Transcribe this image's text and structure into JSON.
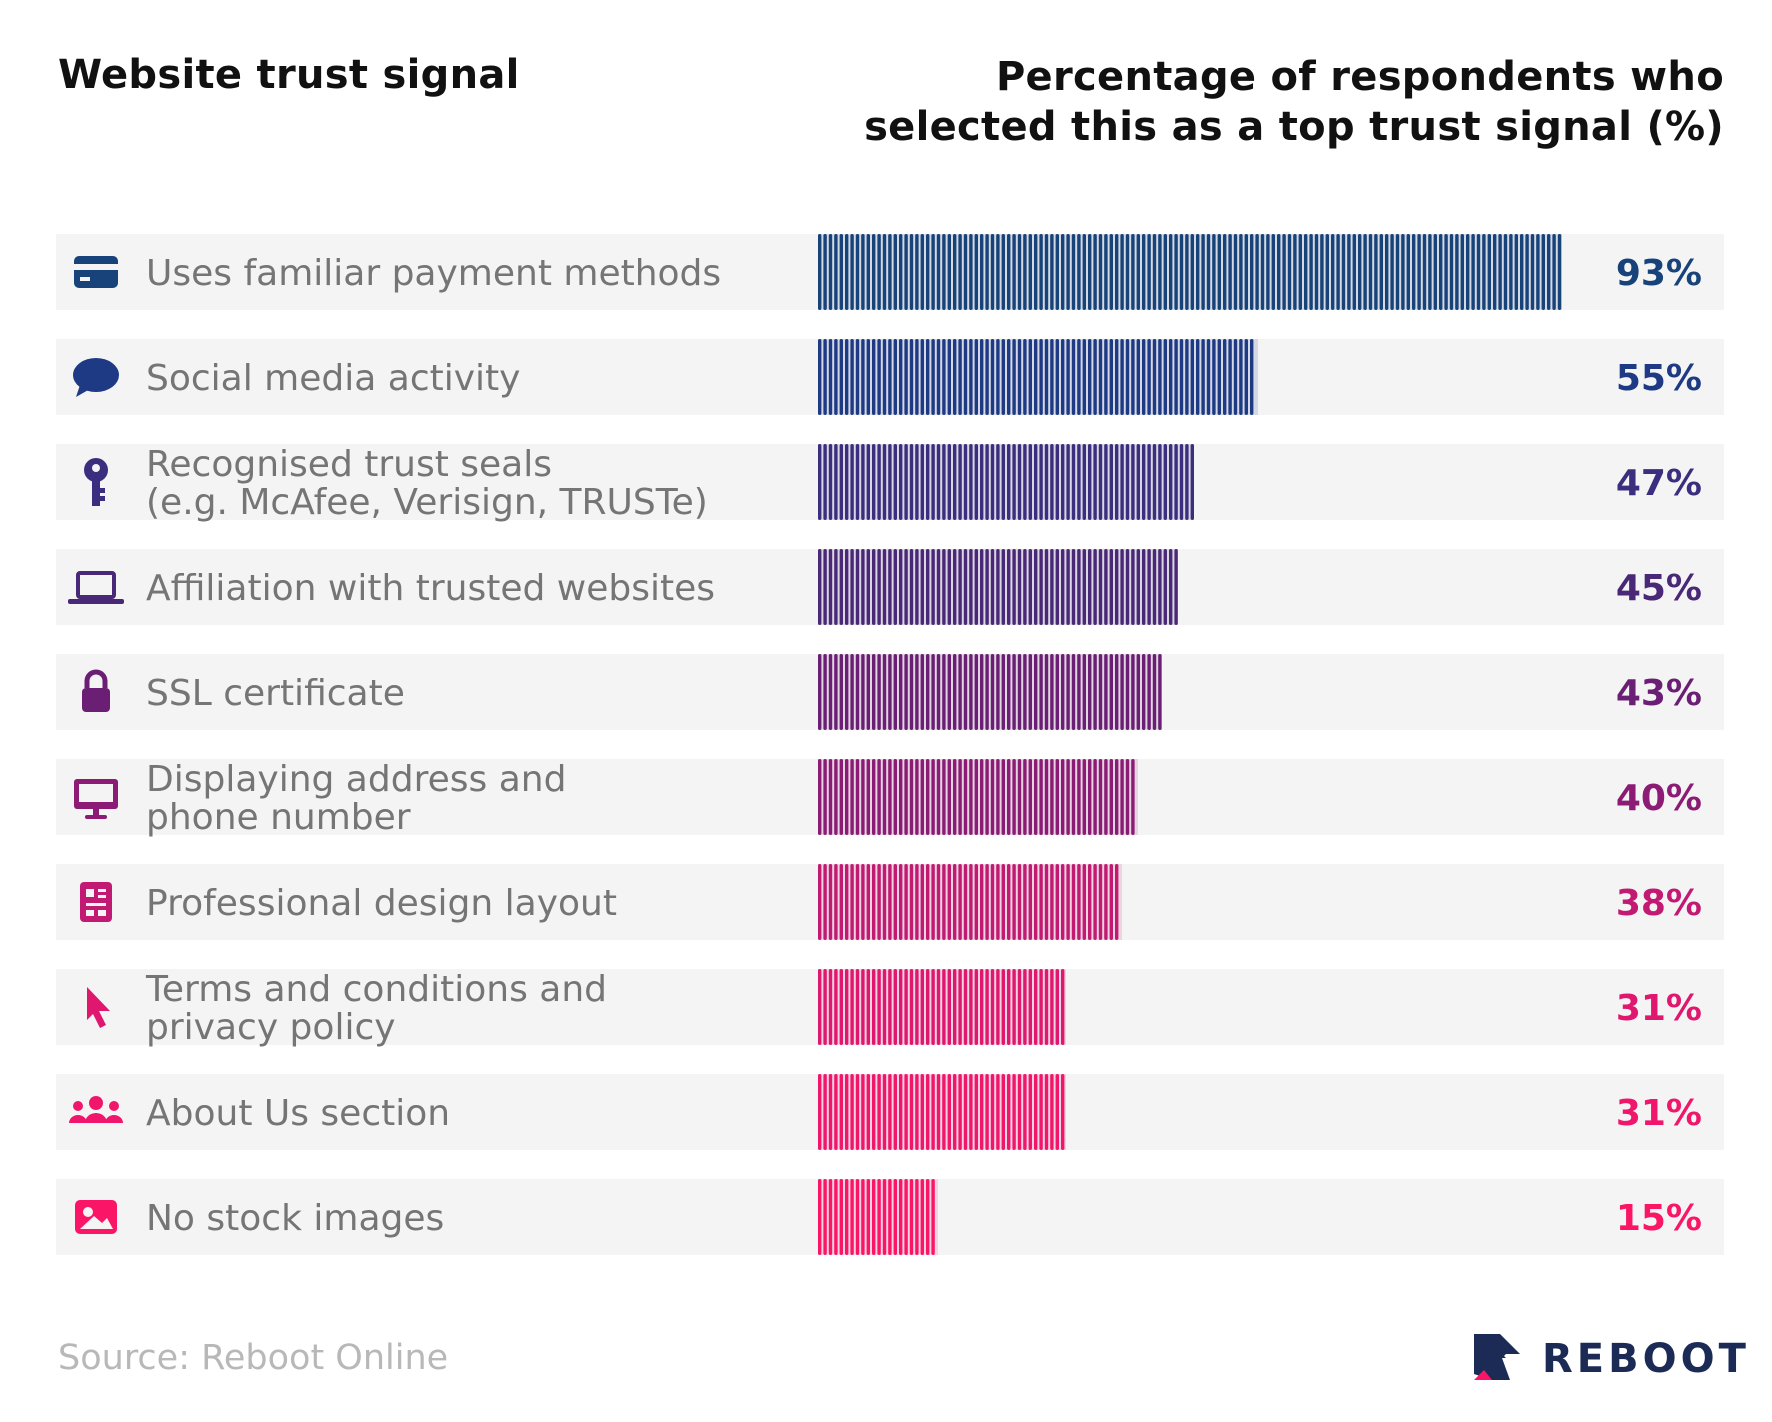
{
  "header": {
    "left_title": "Website trust signal",
    "right_title_line1": "Percentage of respondents who",
    "right_title_line2": "selected this as a top trust signal (%)"
  },
  "source": "Source: Reboot Online",
  "brand": "REBOOT",
  "chart_data": {
    "type": "bar",
    "orientation": "horizontal",
    "unit": "%",
    "xlim": [
      0,
      100
    ],
    "grid": false,
    "legend": "none",
    "categories": [
      "Uses familiar payment methods",
      "Social media activity",
      "Recognised trust seals\n(e.g. McAfee, Verisign, TRUSTe)",
      "Affiliation with trusted websites",
      "SSL certificate",
      "Displaying address and\nphone number",
      "Professional design layout",
      "Terms and conditions and\nprivacy policy",
      "About Us section",
      "No stock images"
    ],
    "values": [
      93,
      55,
      47,
      45,
      43,
      40,
      38,
      31,
      31,
      15
    ],
    "value_labels": [
      "93%",
      "55%",
      "47%",
      "45%",
      "43%",
      "40%",
      "38%",
      "31%",
      "31%",
      "15%"
    ],
    "icons": [
      "credit-card-icon",
      "speech-bubble-icon",
      "key-icon",
      "laptop-icon",
      "lock-icon",
      "monitor-icon",
      "layout-icon",
      "pointer-icon",
      "users-icon",
      "image-icon"
    ],
    "colors": [
      "#17427a",
      "#1f3a85",
      "#3c2e7e",
      "#4a2878",
      "#6b1f74",
      "#8c1b75",
      "#c21a73",
      "#e0176f",
      "#f0166c",
      "#fb1567"
    ]
  }
}
